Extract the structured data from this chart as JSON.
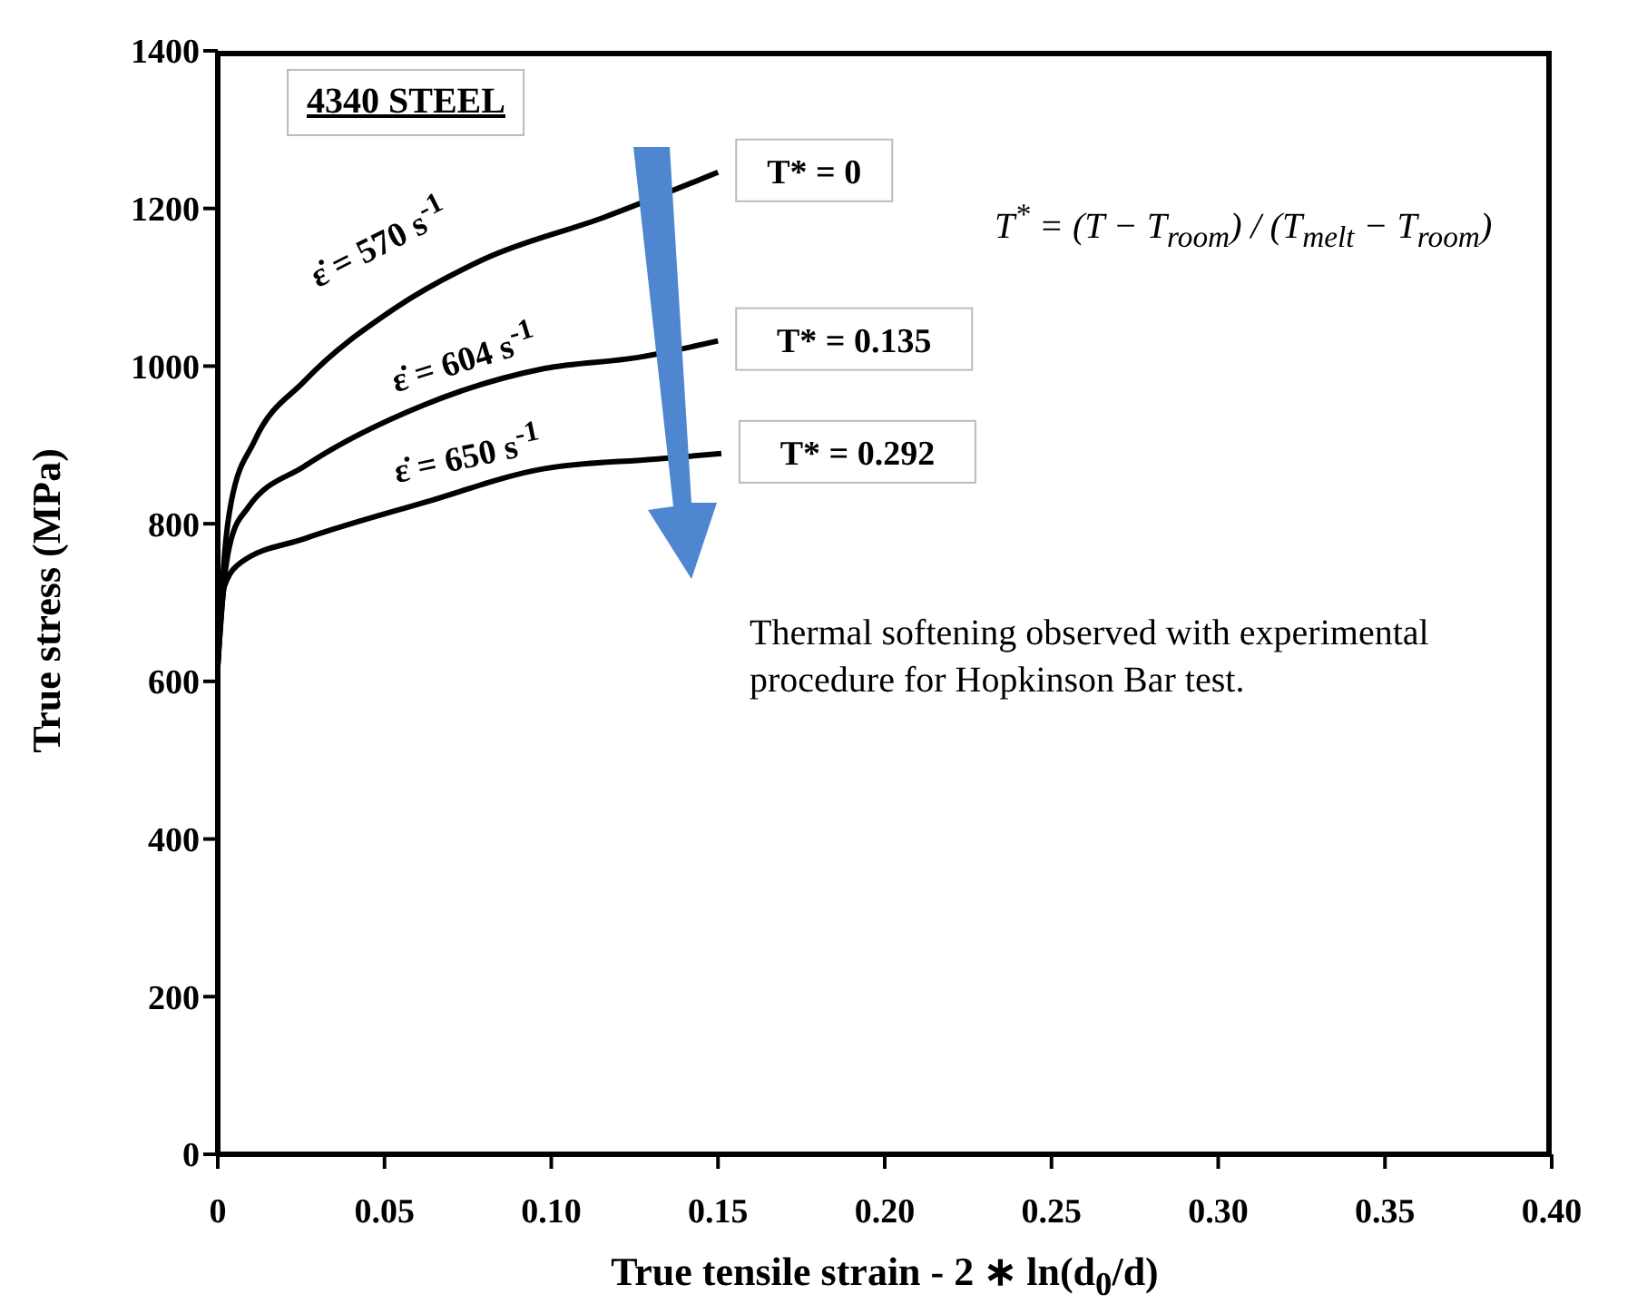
{
  "chart_data": {
    "type": "line",
    "title": "4340 STEEL",
    "xlabel": "True tensile strain - 2 ∗ ln(d$_{0}$/d)",
    "ylabel": "True stress (MPa)",
    "annotations": [
      "ε̇ = 570 s$^{-1}$",
      "ε̇ = 604 s$^{-1}$",
      "ε̇ = 650 s$^{-1}$",
      "T$^{*}$ = (T − T$_{room}$) / (T$_{melt}$ − T$_{room}$)",
      "Thermal softening observed with experimental procedure for Hopkinson Bar test."
    ],
    "xlim": [
      0,
      0.4
    ],
    "xticks": [
      0,
      0.05,
      {
        "value": 0.1,
        "label": "0.10"
      },
      0.15,
      {
        "value": 0.2,
        "label": "0.20"
      },
      0.25,
      {
        "value": 0.3,
        "label": "0.30"
      },
      0.35,
      {
        "value": 0.4,
        "label": "0.40"
      }
    ],
    "ylim": [
      0,
      1400
    ],
    "yticks": [
      0,
      200,
      400,
      600,
      800,
      1000,
      1200,
      1400
    ],
    "marker": "none",
    "line_style": "solid",
    "series": [
      {
        "name": "T* = 0",
        "color": "#000000",
        "x": [
          0,
          0.002,
          0.004,
          0.011,
          0.026,
          0.053,
          0.08,
          0.116,
          0.15
        ],
        "values": [
          620,
          760,
          827,
          905,
          981,
          1073,
          1136,
          1189,
          1246
        ]
      },
      {
        "name": "T* = 0.135",
        "color": "#000000",
        "x": [
          0,
          0.002,
          0.004,
          0.009,
          0.026,
          0.062,
          0.098,
          0.126,
          0.15
        ],
        "values": [
          620,
          730,
          780,
          820,
          873,
          951,
          997,
          1011,
          1032
        ]
      },
      {
        "name": "T* = 0.292",
        "color": "#000000",
        "x": [
          0,
          0.002,
          0.007,
          0.026,
          0.062,
          0.098,
          0.131,
          0.151
        ],
        "values": [
          620,
          721,
          751,
          781,
          827,
          870,
          882,
          889
        ]
      }
    ]
  }
}
